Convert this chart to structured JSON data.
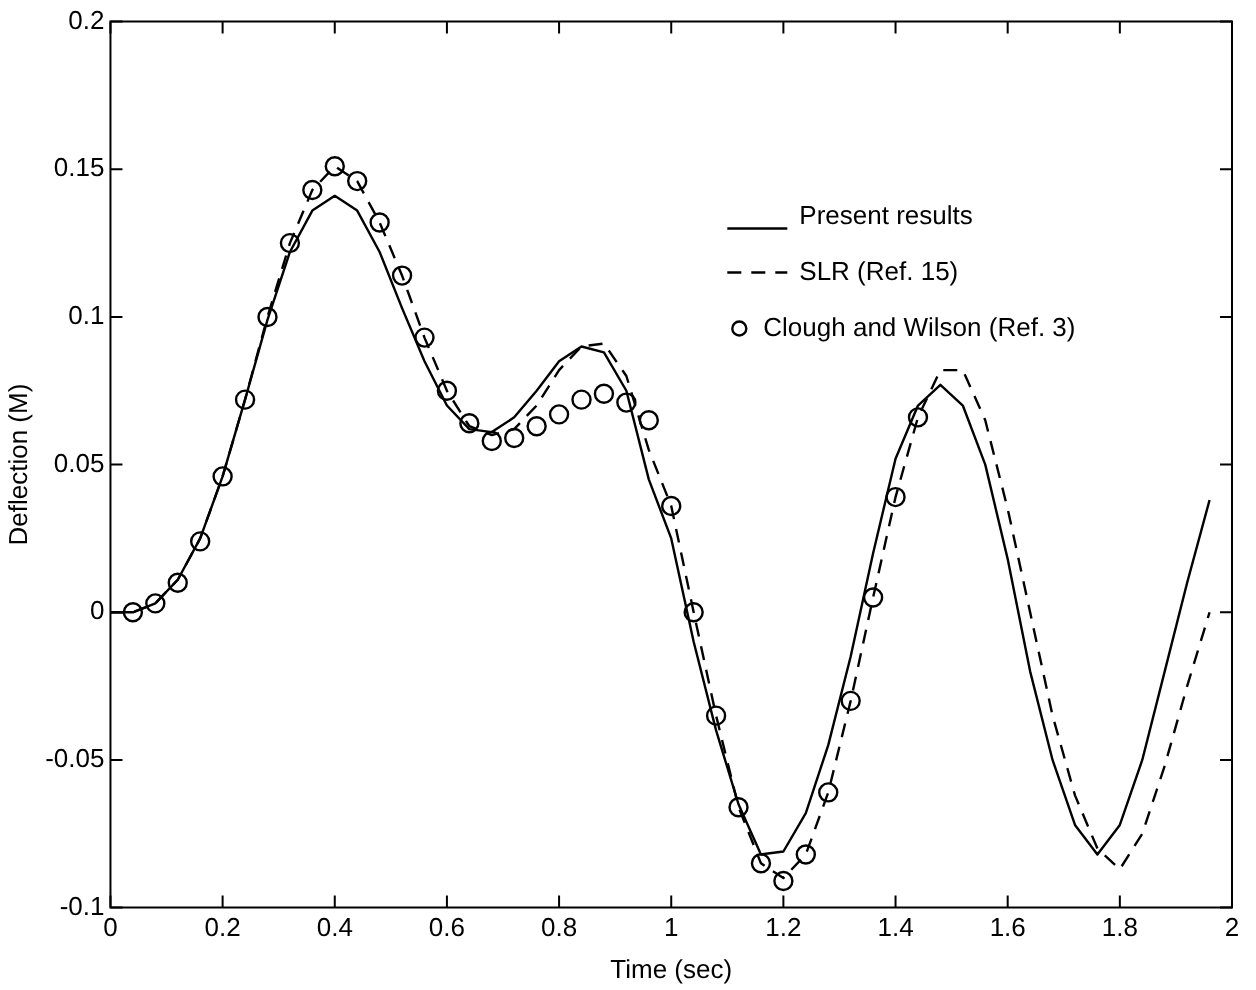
{
  "chart_data": {
    "type": "line",
    "xlabel": "Time (sec)",
    "ylabel": "Deflection (M)",
    "xlim": [
      0,
      2
    ],
    "xticks": [
      0,
      0.2,
      0.4,
      0.6,
      0.8,
      1,
      1.2,
      1.4,
      1.6,
      1.8,
      2
    ],
    "ylim": [
      -0.1,
      0.2
    ],
    "yticks": [
      -0.1,
      -0.05,
      0,
      0.05,
      0.1,
      0.15,
      0.2
    ],
    "grid": false,
    "legend": "top right",
    "series": [
      {
        "name": "Present results",
        "line_style": "solid",
        "marker": "none",
        "color": "#000000",
        "x": [
          0,
          0.04,
          0.08,
          0.12,
          0.16,
          0.2,
          0.24,
          0.28,
          0.32,
          0.36,
          0.4,
          0.44,
          0.48,
          0.52,
          0.56,
          0.6,
          0.64,
          0.68,
          0.72,
          0.76,
          0.8,
          0.84,
          0.88,
          0.92,
          0.96,
          1,
          1.04,
          1.08,
          1.12,
          1.16,
          1.2,
          1.24,
          1.28,
          1.32,
          1.36,
          1.4,
          1.44,
          1.48,
          1.52,
          1.56,
          1.6,
          1.64,
          1.68,
          1.72,
          1.76,
          1.8,
          1.84,
          1.88,
          1.92,
          1.96
        ],
        "values": [
          0,
          0,
          0.003,
          0.011,
          0.025,
          0.046,
          0.072,
          0.099,
          0.122,
          0.136,
          0.141,
          0.136,
          0.122,
          0.103,
          0.085,
          0.07,
          0.062,
          0.061,
          0.066,
          0.075,
          0.085,
          0.09,
          0.088,
          0.075,
          0.045,
          0.025,
          -0.01,
          -0.04,
          -0.065,
          -0.082,
          -0.081,
          -0.068,
          -0.045,
          -0.015,
          0.02,
          0.052,
          0.07,
          0.077,
          0.07,
          0.05,
          0.018,
          -0.02,
          -0.05,
          -0.072,
          -0.082,
          -0.072,
          -0.05,
          -0.02,
          0.01,
          0.038
        ]
      },
      {
        "name": "SLR (Ref. 15)",
        "line_style": "dashed",
        "marker": "none",
        "color": "#000000",
        "x": [
          0,
          0.04,
          0.08,
          0.12,
          0.16,
          0.2,
          0.24,
          0.28,
          0.32,
          0.36,
          0.4,
          0.44,
          0.48,
          0.52,
          0.56,
          0.6,
          0.64,
          0.68,
          0.72,
          0.76,
          0.8,
          0.84,
          0.88,
          0.92,
          0.96,
          1,
          1.04,
          1.08,
          1.12,
          1.16,
          1.2,
          1.24,
          1.28,
          1.32,
          1.36,
          1.4,
          1.44,
          1.48,
          1.52,
          1.56,
          1.6,
          1.64,
          1.68,
          1.72,
          1.76,
          1.8,
          1.84,
          1.88,
          1.92,
          1.96
        ],
        "values": [
          0,
          0,
          0.003,
          0.011,
          0.025,
          0.046,
          0.072,
          0.1,
          0.125,
          0.143,
          0.151,
          0.146,
          0.132,
          0.114,
          0.093,
          0.075,
          0.063,
          0.06,
          0.062,
          0.07,
          0.082,
          0.09,
          0.091,
          0.08,
          0.055,
          0.036,
          0,
          -0.035,
          -0.066,
          -0.085,
          -0.09,
          -0.082,
          -0.061,
          -0.03,
          0.005,
          0.039,
          0.066,
          0.082,
          0.082,
          0.065,
          0.035,
          0,
          -0.035,
          -0.062,
          -0.08,
          -0.087,
          -0.075,
          -0.052,
          -0.025,
          0
        ]
      },
      {
        "name": "Clough and Wilson (Ref. 3)",
        "type": "scatter",
        "marker": "circle",
        "color": "#000000",
        "x": [
          0.04,
          0.08,
          0.12,
          0.16,
          0.2,
          0.24,
          0.28,
          0.32,
          0.36,
          0.4,
          0.44,
          0.48,
          0.52,
          0.56,
          0.6,
          0.64,
          0.68,
          0.72,
          0.76,
          0.8,
          0.84,
          0.88,
          0.92,
          0.96,
          1,
          1.04,
          1.08,
          1.12,
          1.16,
          1.2,
          1.24,
          1.28,
          1.32,
          1.36,
          1.4,
          1.44
        ],
        "values": [
          0,
          0.003,
          0.01,
          0.024,
          0.046,
          0.072,
          0.1,
          0.125,
          0.143,
          0.151,
          0.146,
          0.132,
          0.114,
          0.093,
          0.075,
          0.064,
          0.058,
          0.059,
          0.063,
          0.067,
          0.072,
          0.074,
          0.071,
          0.065,
          0.036,
          0,
          -0.035,
          -0.066,
          -0.085,
          -0.091,
          -0.082,
          -0.061,
          -0.03,
          0.005,
          0.039,
          0.066
        ]
      }
    ]
  }
}
